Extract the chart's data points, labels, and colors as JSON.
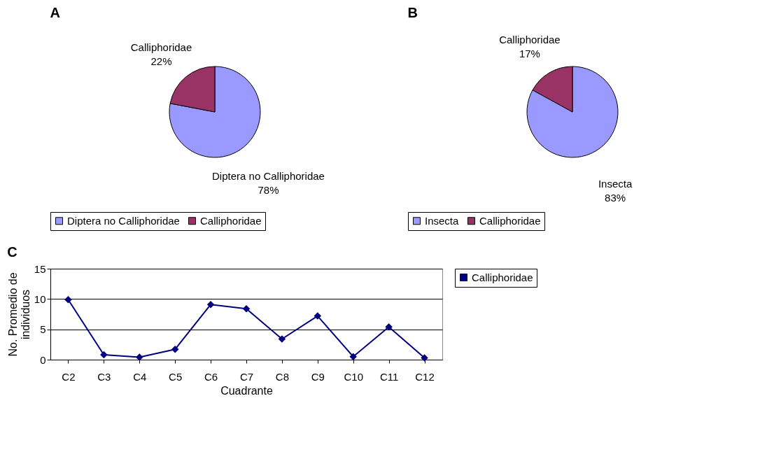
{
  "chart_data": [
    {
      "type": "pie",
      "title": "A",
      "categories": [
        "Diptera no Calliphoridae",
        "Calliphoridae"
      ],
      "values": [
        78,
        22
      ],
      "value_labels": [
        "78%",
        "22%"
      ],
      "colors": [
        "#9999ff",
        "#993366"
      ],
      "legend": "bottom"
    },
    {
      "type": "pie",
      "title": "B",
      "categories": [
        "Insecta",
        "Calliphoridae"
      ],
      "values": [
        83,
        17
      ],
      "value_labels": [
        "83%",
        "17%"
      ],
      "colors": [
        "#9999ff",
        "#993366"
      ],
      "legend": "bottom"
    },
    {
      "type": "line",
      "title": "C",
      "categories": [
        "C2",
        "C3",
        "C4",
        "C5",
        "C6",
        "C7",
        "C8",
        "C9",
        "C10",
        "C11",
        "C12"
      ],
      "xlabel": "Cuadrante",
      "ylabel": "No. Promedio de individuos",
      "ylim": [
        0,
        15
      ],
      "yticks": [
        0,
        5,
        10,
        15
      ],
      "grid": "y",
      "legend": "right",
      "marker": "diamond",
      "series": [
        {
          "name": "Calliphoridae",
          "color": "#000080",
          "values": [
            9.9,
            0.8,
            0.4,
            1.7,
            9.1,
            8.4,
            3.4,
            7.2,
            0.5,
            5.4,
            0.3
          ]
        }
      ]
    }
  ]
}
